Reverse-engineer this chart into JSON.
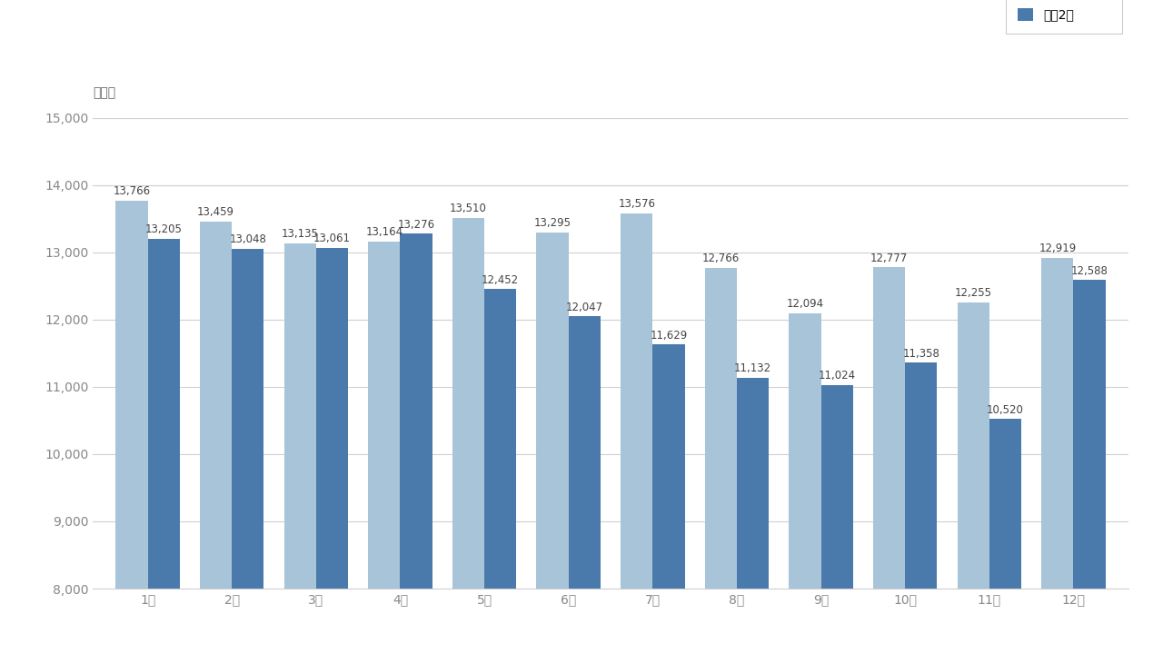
{
  "months": [
    "1月",
    "2月",
    "3月",
    "4月",
    "5月",
    "6月",
    "7月",
    "8月",
    "9月",
    "10月",
    "11月",
    "12月"
  ],
  "series2_label": "令和2年",
  "series1_values": [
    13766,
    13459,
    13135,
    13164,
    13510,
    13295,
    13576,
    12766,
    12094,
    12777,
    12255,
    12919
  ],
  "series2_values": [
    13205,
    13048,
    13061,
    13276,
    12452,
    12047,
    11629,
    11132,
    11024,
    11358,
    10520,
    12588
  ],
  "series1_color": "#a8c4d8",
  "series2_color": "#4a7aab",
  "ylim_min": 8000,
  "ylim_max": 15000,
  "ytick_step": 1000,
  "ylabel": "（件）",
  "background_color": "#ffffff",
  "grid_color": "#d0d0d0",
  "bar_width": 0.38,
  "legend_fontsize": 10,
  "tick_fontsize": 10,
  "value_fontsize": 8.5,
  "ylabel_fontsize": 10
}
